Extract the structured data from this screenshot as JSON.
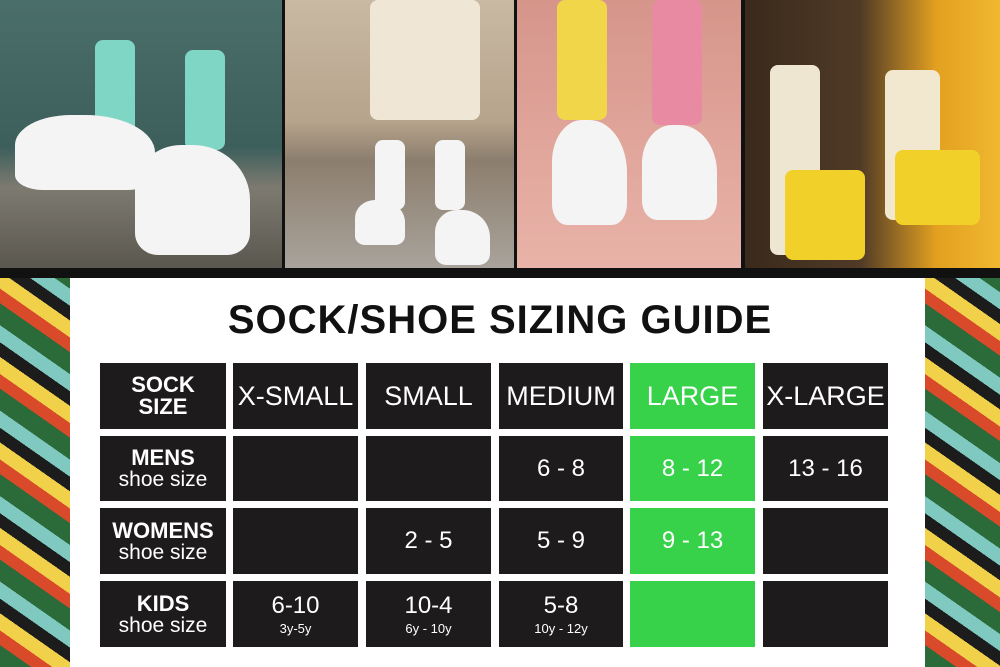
{
  "title": "SOCK/SHOE SIZING GUIDE",
  "colors": {
    "cell": "#1e1b1c",
    "highlight": "#37d24a",
    "text": "#ffffff"
  },
  "highlighted_column": "LARGE",
  "table": {
    "corner": [
      "SOCK",
      "SIZE"
    ],
    "columns": [
      "X-SMALL",
      "SMALL",
      "MEDIUM",
      "LARGE",
      "X-LARGE"
    ],
    "rows": [
      {
        "label": "MENS",
        "sublabel": "shoe size",
        "cells": [
          {
            "v": ""
          },
          {
            "v": ""
          },
          {
            "v": "6 - 8"
          },
          {
            "v": "8 - 12"
          },
          {
            "v": "13 - 16"
          }
        ]
      },
      {
        "label": "WOMENS",
        "sublabel": "shoe size",
        "cells": [
          {
            "v": ""
          },
          {
            "v": "2 - 5"
          },
          {
            "v": "5 - 9"
          },
          {
            "v": "9 - 13"
          },
          {
            "v": ""
          }
        ]
      },
      {
        "label": "KIDS",
        "sublabel": "shoe size",
        "cells": [
          {
            "v": "6-10",
            "s": "3y-5y"
          },
          {
            "v": "10-4",
            "s": "6y - 10y"
          },
          {
            "v": "5-8",
            "s": "10y - 12y"
          },
          {
            "v": ""
          },
          {
            "v": ""
          }
        ]
      }
    ]
  }
}
